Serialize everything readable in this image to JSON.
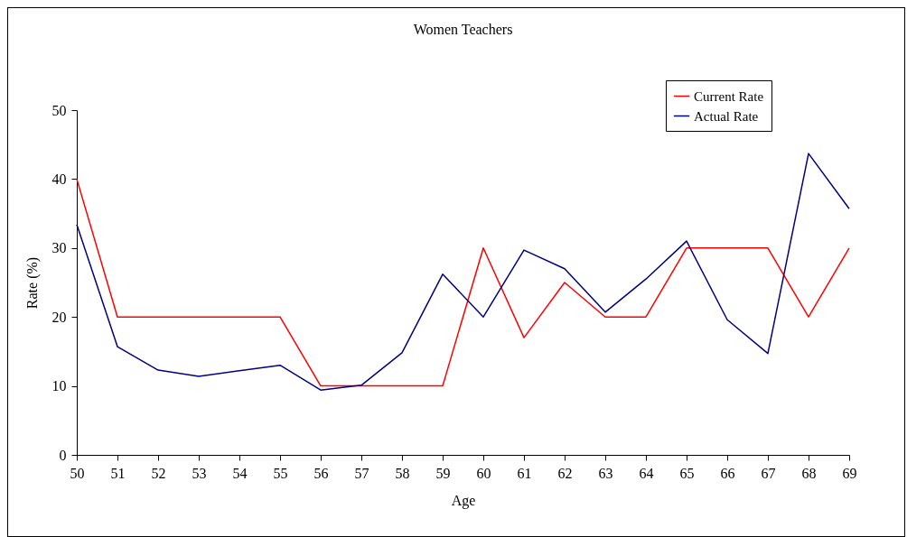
{
  "chart_data": {
    "type": "line",
    "title": "Women Teachers",
    "xlabel": "Age",
    "ylabel": "Rate (%)",
    "x": [
      50,
      51,
      52,
      53,
      54,
      55,
      56,
      57,
      58,
      59,
      60,
      61,
      62,
      63,
      64,
      65,
      66,
      67,
      68,
      69
    ],
    "series": [
      {
        "name": "Current Rate",
        "color": "#ff0000",
        "values": [
          40,
          20,
          20,
          20,
          20,
          20,
          10,
          10,
          10,
          10,
          30,
          17,
          25,
          20,
          20,
          30,
          30,
          30,
          20,
          30
        ]
      },
      {
        "name": "Actual Rate",
        "color": "#000080",
        "values": [
          33.4,
          15.7,
          12.3,
          11.4,
          12.2,
          13.0,
          9.4,
          10.1,
          14.8,
          26.2,
          20.0,
          29.7,
          27.0,
          20.7,
          25.5,
          31.0,
          19.6,
          14.7,
          43.7,
          35.7
        ]
      }
    ],
    "xlim": [
      50,
      69
    ],
    "xticks": [
      50,
      51,
      52,
      53,
      54,
      55,
      56,
      57,
      58,
      59,
      60,
      61,
      62,
      63,
      64,
      65,
      66,
      67,
      68,
      69
    ],
    "ylim": [
      0,
      50
    ],
    "yticks": [
      0,
      10,
      20,
      30,
      40,
      50
    ],
    "grid": false,
    "legend": "top right",
    "marker": "none",
    "line_style": "solid"
  }
}
